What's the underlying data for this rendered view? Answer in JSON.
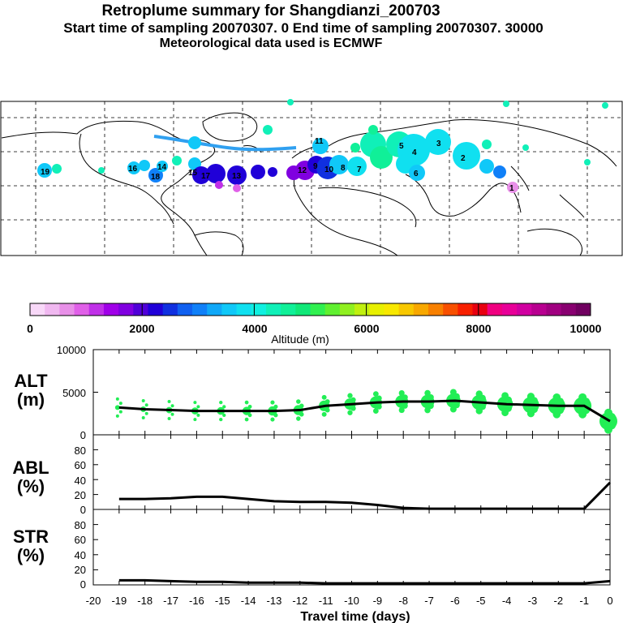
{
  "header": {
    "title": "Retroplume summary for Shangdianzi_200703",
    "subtitle": "Start time of sampling 20070307.    0     End time of sampling 20070307. 30000",
    "met": "Meteorological data used is ECMWF"
  },
  "colorbar": {
    "ticks": [
      "0",
      "2000",
      "4000",
      "6000",
      "8000",
      "10000"
    ],
    "label": "Altitude  (m)",
    "colors": [
      "#f8d8f8",
      "#f0b8f0",
      "#e890e8",
      "#e060e8",
      "#c030e8",
      "#a000e8",
      "#8000e0",
      "#5000d8",
      "#2000d8",
      "#1030e0",
      "#1060f0",
      "#1080f8",
      "#10a8f8",
      "#10c8f8",
      "#10e0f0",
      "#10f0e0",
      "#10f0b8",
      "#10f098",
      "#10e878",
      "#30f050",
      "#60f030",
      "#90f020",
      "#c0f010",
      "#e8f000",
      "#f8e800",
      "#f8c800",
      "#f8a800",
      "#f88000",
      "#f85000",
      "#f82000",
      "#e80010",
      "#f00080",
      "#e80098",
      "#d000a0",
      "#b80090",
      "#a00080",
      "#880070",
      "#700060"
    ]
  },
  "map": {
    "labels": [
      "19",
      "16",
      "14",
      "15",
      "13",
      "12",
      "11",
      "10",
      "9",
      "8",
      "7",
      "6",
      "5",
      "4",
      "3",
      "2",
      "1",
      "18",
      "17"
    ]
  },
  "panels": {
    "alt": {
      "label1": "ALT",
      "label2": "(m)",
      "yticks": [
        "10000",
        "5000",
        "0"
      ]
    },
    "abl": {
      "label1": "ABL",
      "label2": "(%)",
      "yticks": [
        "80",
        "60",
        "40",
        "20",
        "0"
      ]
    },
    "str": {
      "label1": "STR",
      "label2": "(%)",
      "yticks": [
        "80",
        "60",
        "40",
        "20",
        "0"
      ]
    }
  },
  "chart_data": [
    {
      "type": "line",
      "title": "ALT (m)",
      "xlabel": "Travel time (days)",
      "ylabel": "Altitude (m)",
      "xlim": [
        -20,
        0
      ],
      "ylim": [
        0,
        10000
      ],
      "xticks": [
        "-20",
        "-19",
        "-18",
        "-17",
        "-16",
        "-15",
        "-14",
        "-13",
        "-12",
        "-11",
        "-10",
        "-9",
        "-8",
        "-7",
        "-6",
        "-5",
        "-4",
        "-3",
        "-2",
        "-1",
        "0"
      ],
      "x": [
        -19,
        -18,
        -17,
        -16,
        -15,
        -14,
        -13,
        -12,
        -11,
        -10,
        -9,
        -8,
        -7,
        -6,
        -5,
        -4,
        -3,
        -2,
        -1,
        0
      ],
      "values": [
        3200,
        3000,
        2900,
        2800,
        2800,
        2800,
        2800,
        2900,
        3400,
        3600,
        3800,
        3900,
        3900,
        4000,
        3800,
        3600,
        3500,
        3400,
        3400,
        1600
      ]
    },
    {
      "type": "line",
      "title": "ABL (%)",
      "xlim": [
        -20,
        0
      ],
      "ylim": [
        0,
        100
      ],
      "x": [
        -19,
        -18,
        -17,
        -16,
        -15,
        -14,
        -13,
        -12,
        -11,
        -10,
        -9,
        -8,
        -7,
        -6,
        -5,
        -4,
        -3,
        -2,
        -1,
        0
      ],
      "values": [
        14,
        14,
        15,
        17,
        17,
        14,
        11,
        10,
        10,
        9,
        6,
        2,
        1,
        1,
        1,
        1,
        1,
        1,
        1,
        36
      ]
    },
    {
      "type": "line",
      "title": "STR (%)",
      "xlim": [
        -20,
        0
      ],
      "ylim": [
        0,
        100
      ],
      "x": [
        -19,
        -18,
        -17,
        -16,
        -15,
        -14,
        -13,
        -12,
        -11,
        -10,
        -9,
        -8,
        -7,
        -6,
        -5,
        -4,
        -3,
        -2,
        -1,
        0
      ],
      "values": [
        6,
        6,
        5,
        4,
        4,
        3,
        3,
        3,
        2,
        2,
        2,
        2,
        2,
        2,
        2,
        2,
        2,
        2,
        2,
        5
      ]
    }
  ]
}
